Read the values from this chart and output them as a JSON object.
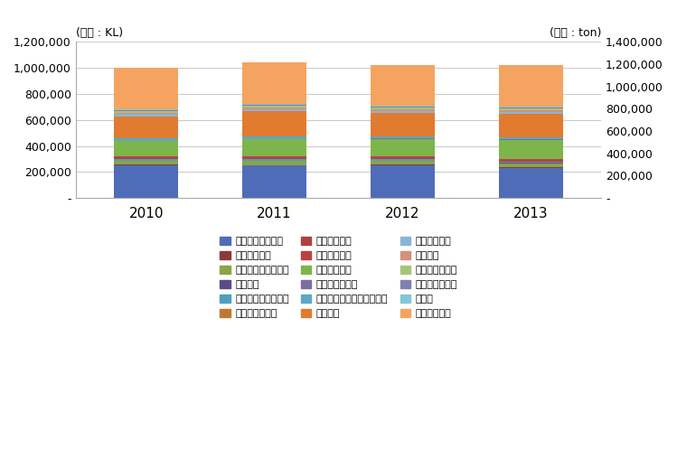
{
  "years": [
    "2010",
    "2011",
    "2012",
    "2013"
  ],
  "categories": [
    "유성계조합페인트",
    "질화면계도료",
    "알키드에나멜계도료",
    "방청도료",
    "아미노알키드계도료",
    "염화비닐계도료",
    "에폭시계도료",
    "아크릴계도료",
    "우레탄계도료",
    "염화고무계도료",
    "불포화폴리에스터르계도료",
    "수계도료",
    "무기질계도료",
    "분체도료",
    "석유수지계도료",
    "불소수지계도료",
    "신나류",
    "기타수지도료"
  ],
  "colors": [
    "#4F6CB8",
    "#8B3A3A",
    "#8BA346",
    "#5C4B8A",
    "#4D9FBF",
    "#C07830",
    "#B04040",
    "#C04040",
    "#7DB54A",
    "#7A6FA0",
    "#5BA8C4",
    "#E07B30",
    "#8BB4D4",
    "#D4907A",
    "#A8C478",
    "#8080B0",
    "#80C8D8",
    "#F4A460"
  ],
  "legend_order": [
    "유성계조합페인트",
    "질화면계도료",
    "알키드에나멜계도료",
    "방청도료",
    "아미노알키드계도료",
    "염화비닐계도료",
    "에폭시계도료",
    "아크릴계도료",
    "우레탄계도료",
    "염화고무계도료",
    "불포화폴리에스터르계도료",
    "수계도료",
    "무기질계도료",
    "분체도료",
    "석유수지계도료",
    "불소수지계도료",
    "신나류",
    "기타수지도료"
  ],
  "values": {
    "유성계조합페인트": [
      250000,
      248000,
      250000,
      233000
    ],
    "질화면계도료": [
      5000,
      5000,
      5000,
      5000
    ],
    "알키드에나멜계도료": [
      30000,
      32000,
      30000,
      28000
    ],
    "방청도료": [
      4000,
      4000,
      4000,
      4000
    ],
    "아미노알키드계도료": [
      8000,
      8000,
      8000,
      7000
    ],
    "염화비닐계도료": [
      5000,
      5000,
      5000,
      5000
    ],
    "에폭시계도료": [
      6000,
      6000,
      7000,
      6000
    ],
    "아크릴계도료": [
      10000,
      10000,
      10000,
      10000
    ],
    "우레탄계도료": [
      120000,
      135000,
      135000,
      150000
    ],
    "염화고무계도료": [
      3000,
      3000,
      3000,
      3000
    ],
    "불포화폴리에스터르계도료": [
      18000,
      17000,
      16000,
      14000
    ],
    "수계도료": [
      170000,
      195000,
      180000,
      185000
    ],
    "무기질계도료": [
      15000,
      15000,
      15000,
      14000
    ],
    "분체도료": [
      12000,
      12000,
      12000,
      12000
    ],
    "석유수지계도료": [
      14000,
      14000,
      15000,
      14000
    ],
    "불소수지계도료": [
      5000,
      5000,
      5000,
      5000
    ],
    "신나류": [
      10000,
      10000,
      10000,
      9000
    ],
    "기타수지도료": [
      315000,
      320000,
      315000,
      315000
    ]
  },
  "ylabel_left": "(단위 : KL)",
  "ylabel_right": "(단위 : ton)",
  "ylim_left": [
    0,
    1200000
  ],
  "ylim_right": [
    0,
    1400000
  ],
  "yticks_left": [
    0,
    200000,
    400000,
    600000,
    800000,
    1000000,
    1200000
  ],
  "yticks_right": [
    0,
    200000,
    400000,
    600000,
    800000,
    1000000,
    1200000,
    1400000
  ],
  "background_color": "#FFFFFF",
  "grid_color": "#C8C8C8"
}
